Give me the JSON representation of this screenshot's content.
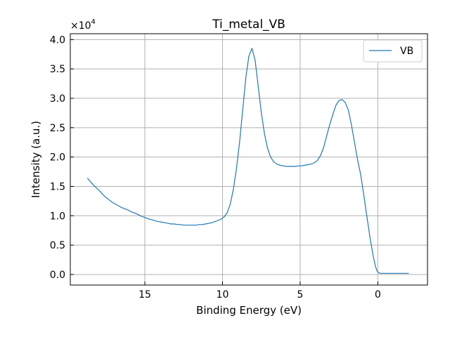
{
  "chart_data": {
    "type": "line",
    "title": "Ti_metal_VB",
    "xlabel": "Binding Energy (eV)",
    "ylabel": "Intensity (a.u.)",
    "y_scale_label": "×10",
    "y_scale_exponent": "4",
    "y_multiplier": 10000,
    "xlim": [
      19.8,
      -3.2
    ],
    "ylim": [
      -0.18,
      4.1
    ],
    "x_inverted": true,
    "xticks": [
      15,
      10,
      5,
      0
    ],
    "xtick_labels": [
      "15",
      "10",
      "5",
      "0"
    ],
    "yticks": [
      0.0,
      0.5,
      1.0,
      1.5,
      2.0,
      2.5,
      3.0,
      3.5,
      4.0
    ],
    "ytick_labels": [
      "0.0",
      "0.5",
      "1.0",
      "1.5",
      "2.0",
      "2.5",
      "3.0",
      "3.5",
      "4.0"
    ],
    "grid": true,
    "legend_position": "top-right",
    "series": [
      {
        "name": "VB",
        "color": "#1f77b4",
        "points": [
          [
            18.7,
            1.64
          ],
          [
            18.5,
            1.58
          ],
          [
            18.3,
            1.52
          ],
          [
            18.1,
            1.47
          ],
          [
            17.9,
            1.42
          ],
          [
            17.7,
            1.36
          ],
          [
            17.5,
            1.31
          ],
          [
            17.3,
            1.27
          ],
          [
            17.1,
            1.23
          ],
          [
            16.9,
            1.2
          ],
          [
            16.7,
            1.17
          ],
          [
            16.5,
            1.14
          ],
          [
            16.3,
            1.12
          ],
          [
            16.1,
            1.1
          ],
          [
            15.9,
            1.07
          ],
          [
            15.7,
            1.05
          ],
          [
            15.5,
            1.03
          ],
          [
            15.3,
            1.0
          ],
          [
            15.1,
            0.98
          ],
          [
            14.9,
            0.96
          ],
          [
            14.7,
            0.94
          ],
          [
            14.5,
            0.93
          ],
          [
            14.3,
            0.91
          ],
          [
            14.1,
            0.9
          ],
          [
            13.9,
            0.89
          ],
          [
            13.7,
            0.88
          ],
          [
            13.5,
            0.87
          ],
          [
            13.3,
            0.86
          ],
          [
            13.1,
            0.86
          ],
          [
            12.9,
            0.85
          ],
          [
            12.7,
            0.85
          ],
          [
            12.5,
            0.84
          ],
          [
            12.3,
            0.84
          ],
          [
            12.1,
            0.84
          ],
          [
            11.9,
            0.84
          ],
          [
            11.7,
            0.84
          ],
          [
            11.5,
            0.85
          ],
          [
            11.3,
            0.85
          ],
          [
            11.1,
            0.86
          ],
          [
            10.9,
            0.87
          ],
          [
            10.7,
            0.88
          ],
          [
            10.5,
            0.9
          ],
          [
            10.3,
            0.92
          ],
          [
            10.1,
            0.94
          ],
          [
            9.9,
            0.98
          ],
          [
            9.7,
            1.05
          ],
          [
            9.5,
            1.2
          ],
          [
            9.3,
            1.45
          ],
          [
            9.1,
            1.8
          ],
          [
            8.9,
            2.25
          ],
          [
            8.7,
            2.8
          ],
          [
            8.5,
            3.35
          ],
          [
            8.3,
            3.72
          ],
          [
            8.1,
            3.85
          ],
          [
            7.9,
            3.65
          ],
          [
            7.7,
            3.2
          ],
          [
            7.5,
            2.75
          ],
          [
            7.3,
            2.4
          ],
          [
            7.1,
            2.15
          ],
          [
            6.9,
            2.0
          ],
          [
            6.7,
            1.92
          ],
          [
            6.5,
            1.88
          ],
          [
            6.3,
            1.86
          ],
          [
            6.1,
            1.85
          ],
          [
            5.9,
            1.84
          ],
          [
            5.7,
            1.84
          ],
          [
            5.5,
            1.84
          ],
          [
            5.3,
            1.84
          ],
          [
            5.1,
            1.85
          ],
          [
            4.9,
            1.85
          ],
          [
            4.7,
            1.86
          ],
          [
            4.5,
            1.87
          ],
          [
            4.3,
            1.88
          ],
          [
            4.1,
            1.9
          ],
          [
            3.9,
            1.94
          ],
          [
            3.7,
            2.02
          ],
          [
            3.5,
            2.15
          ],
          [
            3.3,
            2.35
          ],
          [
            3.1,
            2.55
          ],
          [
            2.9,
            2.72
          ],
          [
            2.7,
            2.88
          ],
          [
            2.5,
            2.96
          ],
          [
            2.3,
            2.98
          ],
          [
            2.1,
            2.93
          ],
          [
            1.9,
            2.8
          ],
          [
            1.7,
            2.55
          ],
          [
            1.5,
            2.25
          ],
          [
            1.3,
            1.95
          ],
          [
            1.1,
            1.7
          ],
          [
            0.9,
            1.35
          ],
          [
            0.7,
            0.98
          ],
          [
            0.5,
            0.62
          ],
          [
            0.3,
            0.32
          ],
          [
            0.15,
            0.14
          ],
          [
            0.05,
            0.06
          ],
          [
            -0.05,
            0.03
          ],
          [
            -0.2,
            0.02
          ],
          [
            -0.4,
            0.02
          ],
          [
            -0.6,
            0.02
          ],
          [
            -0.8,
            0.02
          ],
          [
            -1.0,
            0.02
          ],
          [
            -1.2,
            0.02
          ],
          [
            -1.4,
            0.02
          ],
          [
            -1.6,
            0.02
          ],
          [
            -1.8,
            0.02
          ],
          [
            -2.0,
            0.02
          ]
        ]
      }
    ]
  }
}
